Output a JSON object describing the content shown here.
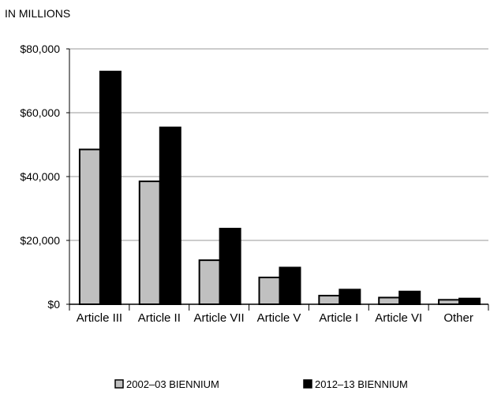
{
  "chart_data": {
    "type": "bar",
    "unit_label": "IN MILLIONS",
    "title": "",
    "xlabel": "",
    "ylabel": "",
    "categories": [
      "Article III",
      "Article II",
      "Article VII",
      "Article V",
      "Article I",
      "Article VI",
      "Other"
    ],
    "series": [
      {
        "name": "2002–03 BIENNIUM",
        "color": "#c0c0c0",
        "values": [
          48500,
          38500,
          13800,
          8400,
          2700,
          2100,
          1400
        ]
      },
      {
        "name": "2012–13 BIENNIUM",
        "color": "#000000",
        "values": [
          72900,
          55400,
          23700,
          11500,
          4600,
          4000,
          1800
        ]
      }
    ],
    "ylim": [
      0,
      80000
    ],
    "yticks": [
      0,
      20000,
      40000,
      60000,
      80000
    ],
    "ytick_labels": [
      "$0",
      "$20,000",
      "$40,000",
      "$60,000",
      "$80,000"
    ],
    "grid": "horizontal",
    "legend": "bottom"
  }
}
